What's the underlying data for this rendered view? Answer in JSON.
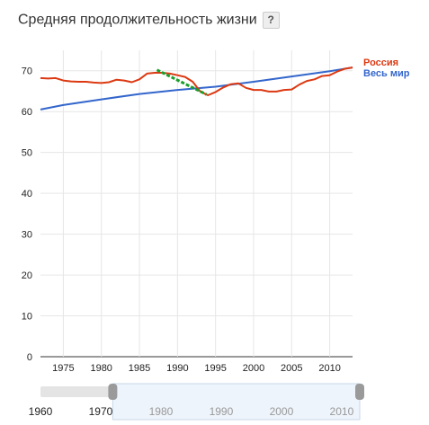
{
  "title": "Средняя продолжительность жизни",
  "help_label": "?",
  "chart_data": {
    "type": "line",
    "ylim": [
      0,
      75
    ],
    "xlim": [
      1972,
      2013
    ],
    "yticks": [
      "0",
      "10",
      "20",
      "30",
      "40",
      "50",
      "60",
      "70"
    ],
    "xticks": [
      "1975",
      "1980",
      "1985",
      "1990",
      "1995",
      "2000",
      "2005",
      "2010"
    ],
    "grid": true,
    "legend_position": "right",
    "series": [
      {
        "name": "Россия",
        "color": "#dc3912",
        "x": [
          1972,
          1973,
          1974,
          1975,
          1976,
          1977,
          1978,
          1979,
          1980,
          1981,
          1982,
          1983,
          1984,
          1985,
          1986,
          1987,
          1988,
          1989,
          1990,
          1991,
          1992,
          1993,
          1994,
          1995,
          1996,
          1997,
          1998,
          1999,
          2000,
          2001,
          2002,
          2003,
          2004,
          2005,
          2006,
          2007,
          2008,
          2009,
          2010,
          2011,
          2012,
          2013
        ],
        "values": [
          68.2,
          68.1,
          68.2,
          67.6,
          67.4,
          67.3,
          67.3,
          67.1,
          67.0,
          67.2,
          67.8,
          67.6,
          67.2,
          67.9,
          69.3,
          69.5,
          69.5,
          69.3,
          68.9,
          68.5,
          67.3,
          64.9,
          64.0,
          64.8,
          65.9,
          66.7,
          66.9,
          65.8,
          65.3,
          65.3,
          64.9,
          64.9,
          65.3,
          65.4,
          66.6,
          67.5,
          67.9,
          68.7,
          68.9,
          69.8,
          70.5,
          70.8
        ]
      },
      {
        "name": "Весь мир",
        "color": "#3366cc",
        "x": [
          1972,
          1975,
          1980,
          1985,
          1990,
          1995,
          2000,
          2005,
          2010,
          2013
        ],
        "values": [
          60.5,
          61.6,
          63.0,
          64.3,
          65.3,
          66.1,
          67.3,
          68.6,
          69.9,
          70.8
        ]
      }
    ],
    "annotation": {
      "color": "#1a9e2a",
      "x": [
        1987.3,
        1993.8
      ],
      "values": [
        70.2,
        64.2
      ]
    }
  },
  "range": {
    "labels": [
      "1960",
      "1970",
      "1980",
      "1990",
      "2000",
      "2010"
    ],
    "start": 1972,
    "end": 2013,
    "min": 1960,
    "max": 2013
  }
}
